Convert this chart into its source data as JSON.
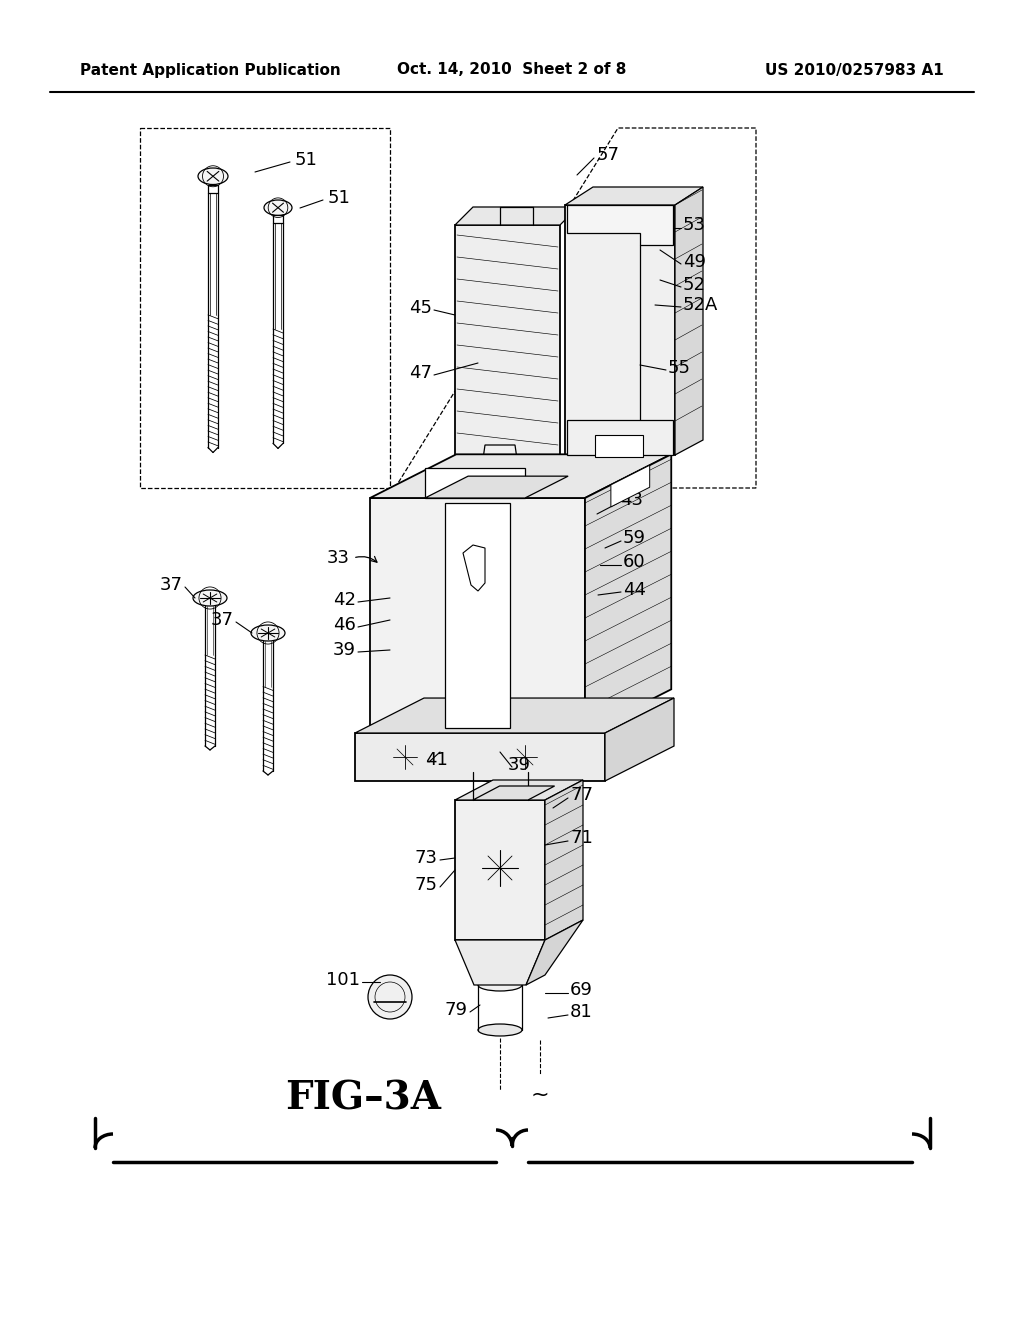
{
  "bg_color": "#ffffff",
  "text_color": "#000000",
  "header_left": "Patent Application Publication",
  "header_center": "Oct. 14, 2010  Sheet 2 of 8",
  "header_right": "US 2010/0257983 A1",
  "figure_label": "FIG–3A",
  "header_fontsize": 11,
  "fig_label_fontsize": 28,
  "label_fontsize": 13
}
